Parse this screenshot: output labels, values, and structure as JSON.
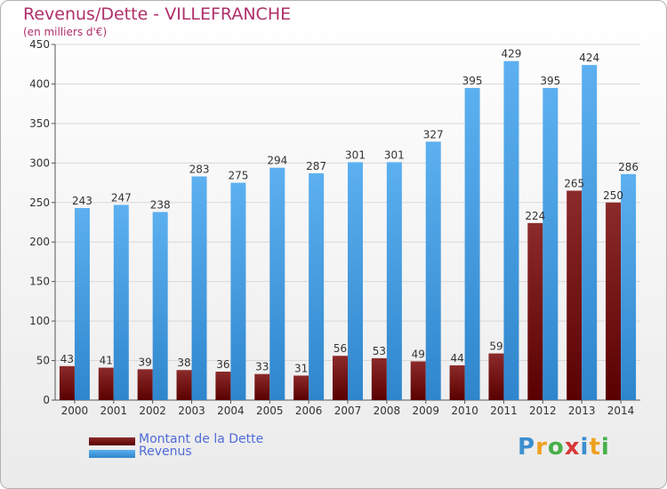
{
  "chart_data": {
    "type": "bar",
    "title": "Revenus/Dette - VILLEFRANCHE",
    "subtitle": "(en milliers d'€)",
    "categories": [
      "2000",
      "2001",
      "2002",
      "2003",
      "2004",
      "2005",
      "2006",
      "2007",
      "2008",
      "2009",
      "2010",
      "2011",
      "2012",
      "2013",
      "2014"
    ],
    "series": [
      {
        "name": "Montant de la Dette",
        "color": "#7a1818",
        "values": [
          43,
          41,
          39,
          38,
          36,
          33,
          31,
          56,
          53,
          49,
          44,
          59,
          224,
          265,
          250
        ]
      },
      {
        "name": "Revenus",
        "color": "#4aa3e8",
        "values": [
          243,
          247,
          238,
          283,
          275,
          294,
          287,
          301,
          301,
          327,
          395,
          429,
          395,
          424,
          286
        ]
      }
    ],
    "ylim": [
      0,
      450
    ],
    "yticks": [
      0,
      50,
      100,
      150,
      200,
      250,
      300,
      350,
      400,
      450
    ],
    "grid": true,
    "legend": "bottom-left"
  },
  "branding": {
    "logo_letters": [
      {
        "ch": "P",
        "color": "#3a8fd0"
      },
      {
        "ch": "r",
        "color": "#f0a020"
      },
      {
        "ch": "o",
        "color": "#48b048"
      },
      {
        "ch": "x",
        "color": "#d83838"
      },
      {
        "ch": "i",
        "color": "#3a8fd0"
      },
      {
        "ch": "t",
        "color": "#f0a020"
      },
      {
        "ch": "i",
        "color": "#48b048"
      }
    ]
  }
}
